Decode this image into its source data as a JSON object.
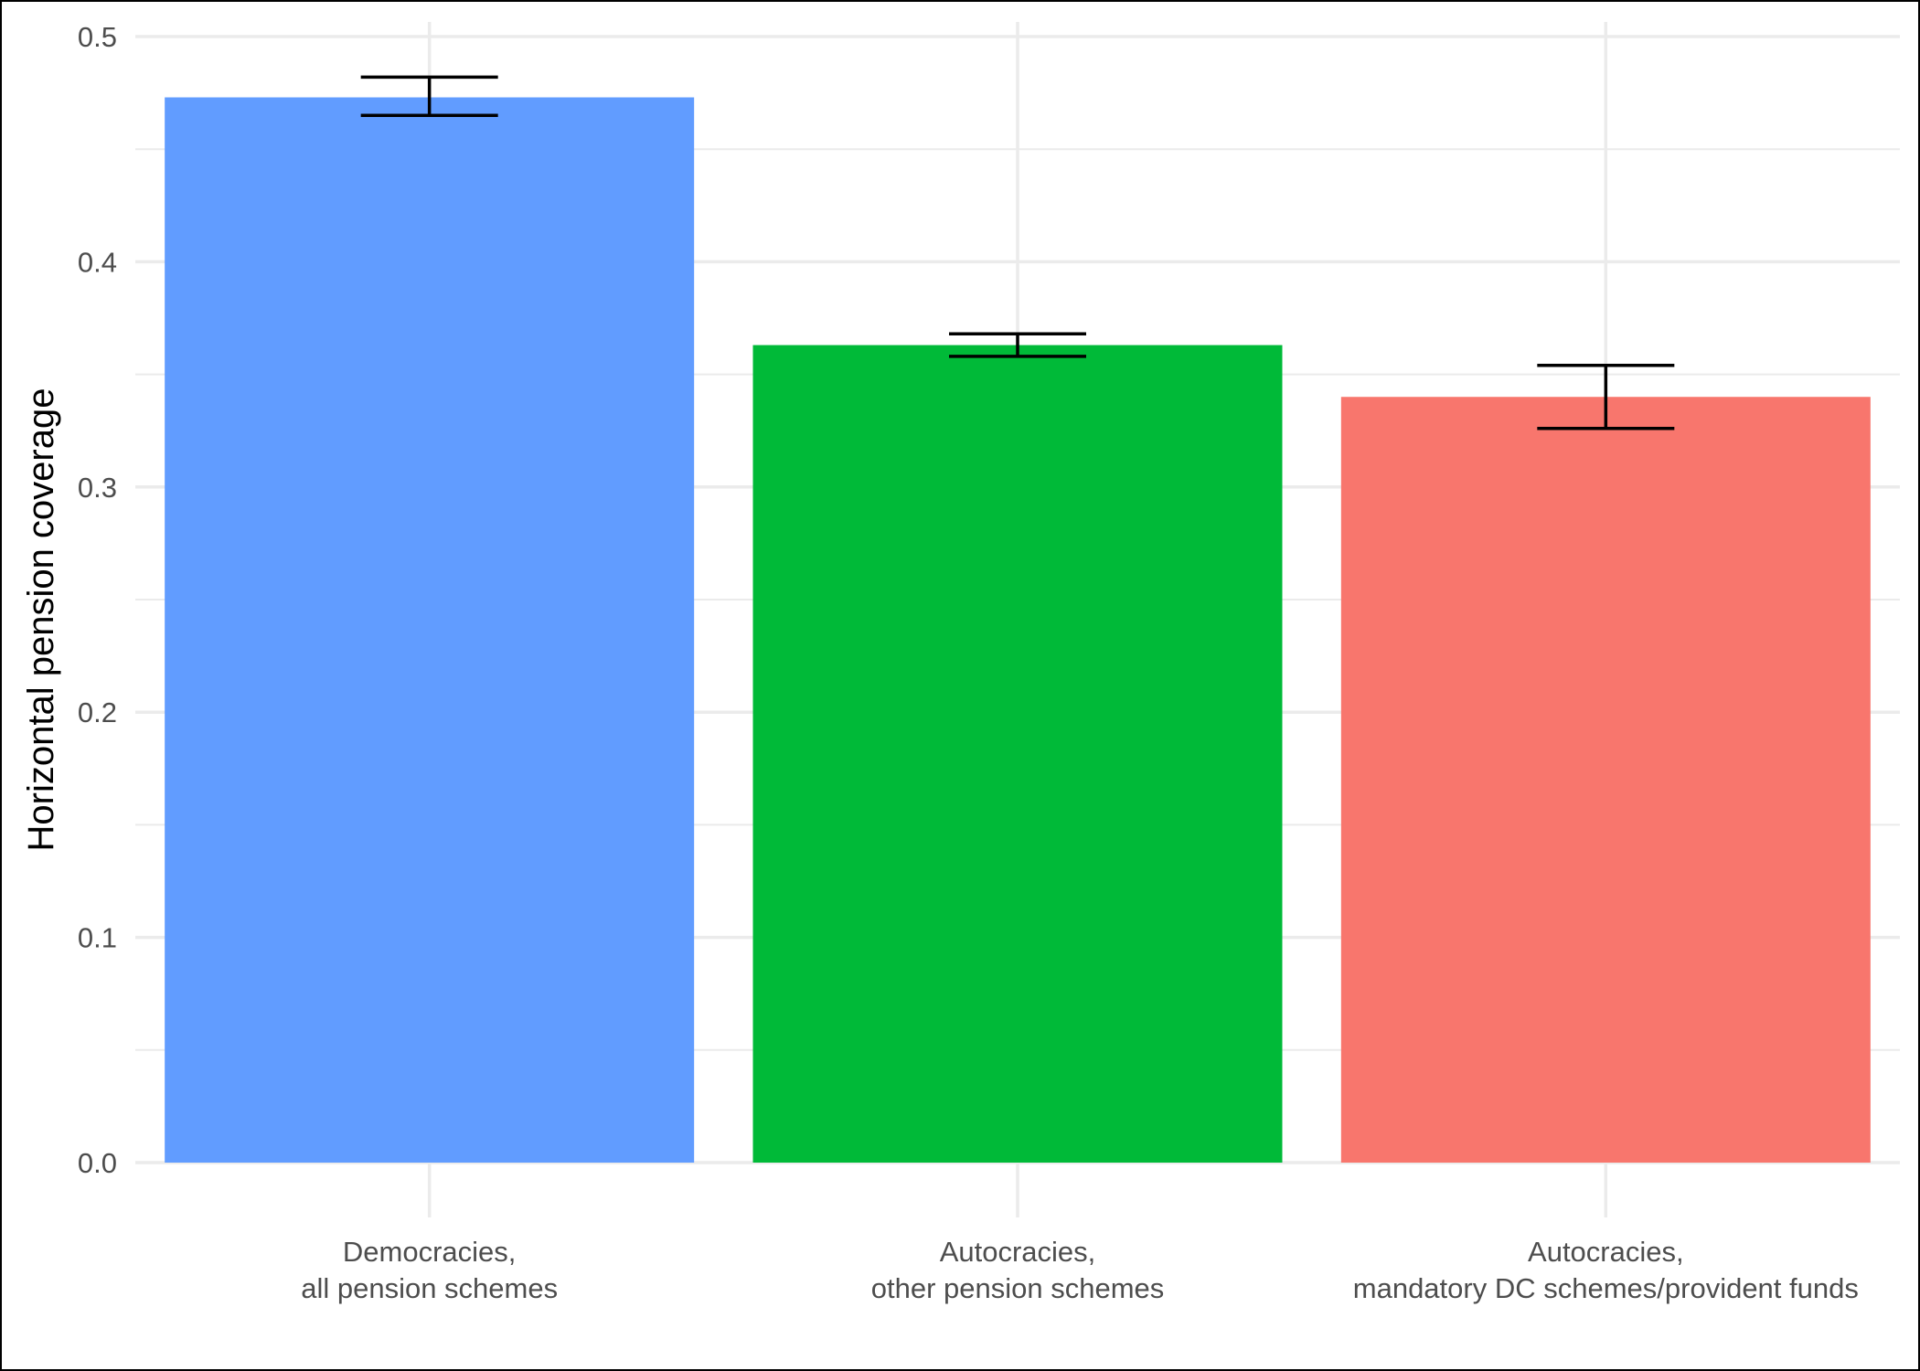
{
  "chart_data": {
    "type": "bar",
    "title": "",
    "xlabel": "",
    "ylabel": "Horizontal pension coverage",
    "ylim": [
      0,
      0.5
    ],
    "yticks": [
      "0.0",
      "0.1",
      "0.2",
      "0.3",
      "0.4",
      "0.5"
    ],
    "grid": true,
    "legend": "none",
    "categories": [
      [
        "Democracies,",
        "all pension schemes"
      ],
      [
        "Autocracies,",
        "other pension schemes"
      ],
      [
        "Autocracies,",
        "mandatory DC schemes/provident funds"
      ]
    ],
    "values": [
      0.473,
      0.363,
      0.34
    ],
    "error_lower": [
      0.465,
      0.358,
      0.326
    ],
    "error_upper": [
      0.482,
      0.368,
      0.354
    ],
    "colors": [
      "#619CFF",
      "#00BA38",
      "#F8766D"
    ]
  }
}
